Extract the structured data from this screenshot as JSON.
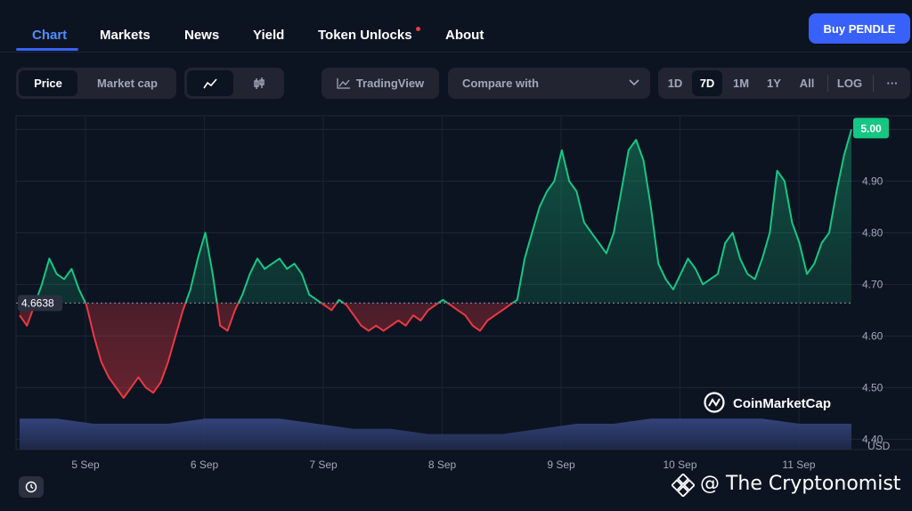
{
  "nav": {
    "tabs": [
      "Chart",
      "Markets",
      "News",
      "Yield",
      "Token Unlocks",
      "About"
    ],
    "active": "Chart",
    "buy_label": "Buy PENDLE"
  },
  "toolbar": {
    "price_label": "Price",
    "market_cap_label": "Market cap",
    "tradingview_label": "TradingView",
    "compare_label": "Compare with",
    "ranges": [
      "1D",
      "7D",
      "1M",
      "1Y",
      "All"
    ],
    "active_range": "7D",
    "log_label": "LOG",
    "more_label": "···"
  },
  "colors": {
    "up": "#16c784",
    "down": "#ea3943",
    "accent": "#3861fb",
    "background": "#0d1421"
  },
  "watermark": {
    "brand": "CoinMarketCap",
    "source": "@ The Cryptonomist"
  },
  "chart_data": {
    "type": "line",
    "x_labels": [
      "5 Sep",
      "6 Sep",
      "7 Sep",
      "8 Sep",
      "9 Sep",
      "10 Sep",
      "11 Sep"
    ],
    "y_ticks": [
      "5.00",
      "4.90",
      "4.80",
      "4.70",
      "4.60",
      "4.50",
      "4.40"
    ],
    "y_unit": "USD",
    "ylim": [
      4.38,
      5.03
    ],
    "baseline": 4.6638,
    "baseline_label": "4.6638",
    "current_label": "5.00",
    "price": [
      [
        0,
        4.64
      ],
      [
        1,
        4.62
      ],
      [
        2,
        4.66
      ],
      [
        3,
        4.7
      ],
      [
        4,
        4.75
      ],
      [
        5,
        4.72
      ],
      [
        6,
        4.71
      ],
      [
        7,
        4.73
      ],
      [
        8,
        4.69
      ],
      [
        9,
        4.66
      ],
      [
        10,
        4.6
      ],
      [
        11,
        4.55
      ],
      [
        12,
        4.52
      ],
      [
        13,
        4.5
      ],
      [
        14,
        4.48
      ],
      [
        15,
        4.5
      ],
      [
        16,
        4.52
      ],
      [
        17,
        4.5
      ],
      [
        18,
        4.49
      ],
      [
        19,
        4.51
      ],
      [
        20,
        4.55
      ],
      [
        21,
        4.6
      ],
      [
        22,
        4.65
      ],
      [
        23,
        4.69
      ],
      [
        24,
        4.75
      ],
      [
        25,
        4.8
      ],
      [
        26,
        4.72
      ],
      [
        27,
        4.62
      ],
      [
        28,
        4.61
      ],
      [
        29,
        4.65
      ],
      [
        30,
        4.68
      ],
      [
        31,
        4.72
      ],
      [
        32,
        4.75
      ],
      [
        33,
        4.73
      ],
      [
        34,
        4.74
      ],
      [
        35,
        4.75
      ],
      [
        36,
        4.73
      ],
      [
        37,
        4.74
      ],
      [
        38,
        4.72
      ],
      [
        39,
        4.68
      ],
      [
        40,
        4.67
      ],
      [
        41,
        4.66
      ],
      [
        42,
        4.65
      ],
      [
        43,
        4.67
      ],
      [
        44,
        4.66
      ],
      [
        45,
        4.64
      ],
      [
        46,
        4.62
      ],
      [
        47,
        4.61
      ],
      [
        48,
        4.62
      ],
      [
        49,
        4.61
      ],
      [
        50,
        4.62
      ],
      [
        51,
        4.63
      ],
      [
        52,
        4.62
      ],
      [
        53,
        4.64
      ],
      [
        54,
        4.63
      ],
      [
        55,
        4.65
      ],
      [
        56,
        4.66
      ],
      [
        57,
        4.67
      ],
      [
        58,
        4.66
      ],
      [
        59,
        4.65
      ],
      [
        60,
        4.64
      ],
      [
        61,
        4.62
      ],
      [
        62,
        4.61
      ],
      [
        63,
        4.63
      ],
      [
        64,
        4.64
      ],
      [
        65,
        4.65
      ],
      [
        66,
        4.66
      ],
      [
        67,
        4.67
      ],
      [
        68,
        4.75
      ],
      [
        69,
        4.8
      ],
      [
        70,
        4.85
      ],
      [
        71,
        4.88
      ],
      [
        72,
        4.9
      ],
      [
        73,
        4.96
      ],
      [
        74,
        4.9
      ],
      [
        75,
        4.88
      ],
      [
        76,
        4.82
      ],
      [
        77,
        4.8
      ],
      [
        78,
        4.78
      ],
      [
        79,
        4.76
      ],
      [
        80,
        4.8
      ],
      [
        81,
        4.88
      ],
      [
        82,
        4.96
      ],
      [
        83,
        4.98
      ],
      [
        84,
        4.94
      ],
      [
        85,
        4.85
      ],
      [
        86,
        4.74
      ],
      [
        87,
        4.71
      ],
      [
        88,
        4.69
      ],
      [
        89,
        4.72
      ],
      [
        90,
        4.75
      ],
      [
        91,
        4.73
      ],
      [
        92,
        4.7
      ],
      [
        93,
        4.71
      ],
      [
        94,
        4.72
      ],
      [
        95,
        4.78
      ],
      [
        96,
        4.8
      ],
      [
        97,
        4.75
      ],
      [
        98,
        4.72
      ],
      [
        99,
        4.71
      ],
      [
        100,
        4.75
      ],
      [
        101,
        4.8
      ],
      [
        102,
        4.92
      ],
      [
        103,
        4.9
      ],
      [
        104,
        4.82
      ],
      [
        105,
        4.78
      ],
      [
        106,
        4.72
      ],
      [
        107,
        4.74
      ],
      [
        108,
        4.78
      ],
      [
        109,
        4.8
      ],
      [
        110,
        4.88
      ],
      [
        111,
        4.95
      ],
      [
        112,
        5.0
      ]
    ],
    "volume": [
      [
        0,
        4.44
      ],
      [
        5,
        4.44
      ],
      [
        10,
        4.43
      ],
      [
        15,
        4.43
      ],
      [
        20,
        4.43
      ],
      [
        25,
        4.44
      ],
      [
        30,
        4.44
      ],
      [
        35,
        4.44
      ],
      [
        40,
        4.43
      ],
      [
        45,
        4.42
      ],
      [
        50,
        4.42
      ],
      [
        55,
        4.41
      ],
      [
        60,
        4.41
      ],
      [
        65,
        4.41
      ],
      [
        70,
        4.42
      ],
      [
        75,
        4.43
      ],
      [
        80,
        4.43
      ],
      [
        85,
        4.44
      ],
      [
        90,
        4.44
      ],
      [
        95,
        4.44
      ],
      [
        100,
        4.44
      ],
      [
        105,
        4.43
      ],
      [
        112,
        4.43
      ]
    ],
    "volume_floor": 4.38,
    "grid": true
  }
}
